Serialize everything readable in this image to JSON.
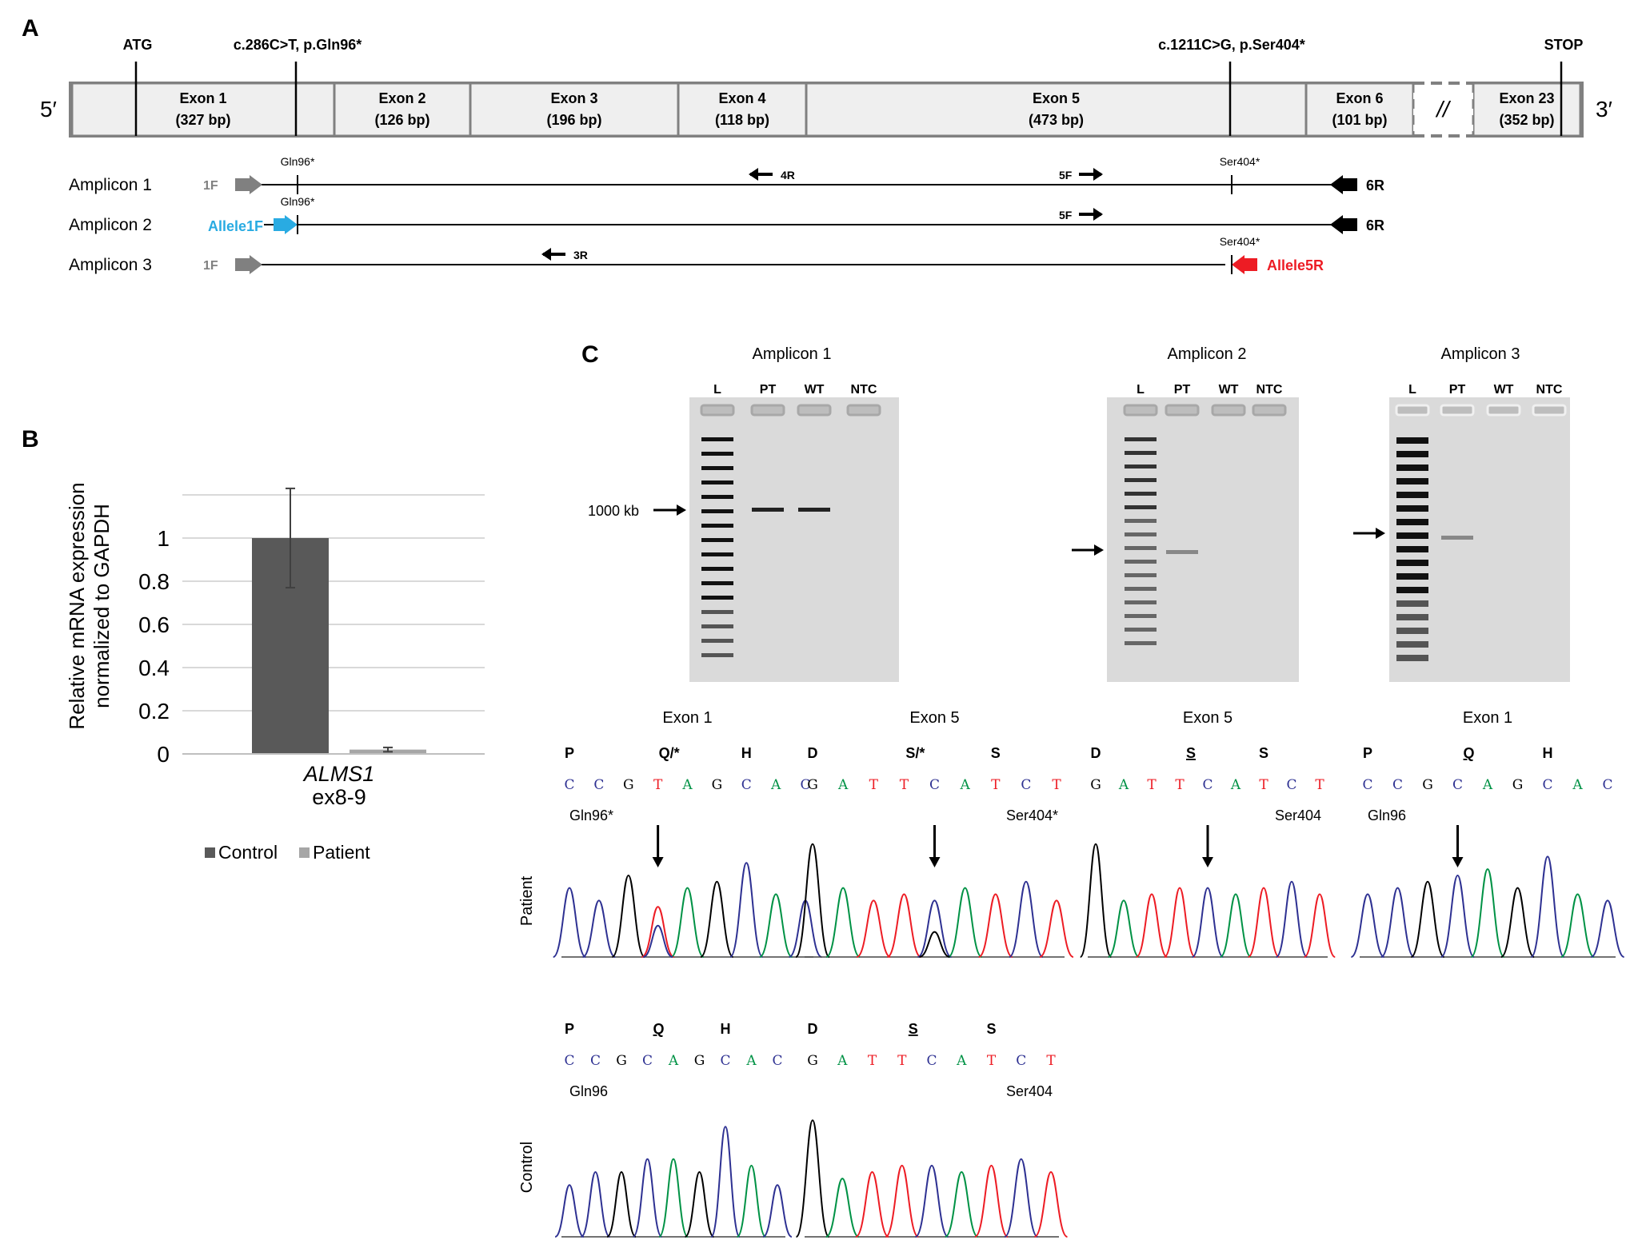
{
  "panels": {
    "a": "A",
    "b": "B",
    "c": "C"
  },
  "gene_map": {
    "five_prime": "5′",
    "three_prime": "3′",
    "markers": {
      "atg": "ATG",
      "mut1": "c.286C>T, p.Gln96*",
      "mut2": "c.1211C>G, p.Ser404*",
      "stop": "STOP"
    },
    "break_symbol": "//",
    "exons": [
      {
        "name": "Exon 1",
        "size": "(327 bp)"
      },
      {
        "name": "Exon 2",
        "size": "(126 bp)"
      },
      {
        "name": "Exon 3",
        "size": "(196 bp)"
      },
      {
        "name": "Exon 4",
        "size": "(118 bp)"
      },
      {
        "name": "Exon 5",
        "size": "(473 bp)"
      },
      {
        "name": "Exon 6",
        "size": "(101 bp)"
      },
      {
        "name": "Exon 23",
        "size": "(352 bp)"
      }
    ]
  },
  "amplicons": [
    {
      "label": "Amplicon 1",
      "fwd": "1F",
      "rev": "6R",
      "inner_rev": "4R",
      "inner_fwd": "5F",
      "site1": "Gln96*",
      "site2": "Ser404*"
    },
    {
      "label": "Amplicon 2",
      "fwd": "Allele1F",
      "rev": "6R",
      "inner_fwd": "5F",
      "site1": "Gln96*"
    },
    {
      "label": "Amplicon 3",
      "fwd": "1F",
      "rev": "Allele5R",
      "inner_rev": "3R",
      "site2": "Ser404*"
    }
  ],
  "colors": {
    "allele1f": "#29abe2",
    "allele5r": "#ed1c24",
    "bar_control": "#595959",
    "bar_patient": "#a6a6a6",
    "base_C": "#2e3192",
    "base_G": "#000000",
    "base_A": "#009245",
    "base_T": "#ed1c24"
  },
  "chart_data": {
    "type": "bar",
    "ylabel": "Relative mRNA expression normalized to GAPDH",
    "ylabel_line1": "Relative mRNA expression",
    "ylabel_line2": "normalized to GAPDH",
    "ylim": [
      0,
      1.2
    ],
    "yticks": [
      "0",
      "0.2",
      "0.4",
      "0.6",
      "0.8",
      "1"
    ],
    "category_gene": "ALMS1",
    "category_region": "ex8-9",
    "grid": true,
    "legend_position": "bottom",
    "series": [
      {
        "name": "Control",
        "values": [
          1.0
        ],
        "error": 0.23
      },
      {
        "name": "Patient",
        "values": [
          0.02
        ],
        "error": 0.01
      }
    ]
  },
  "gels": [
    {
      "title": "Amplicon 1",
      "lanes": [
        "L",
        "PT",
        "WT",
        "NTC"
      ],
      "marker_label": "1000 kb"
    },
    {
      "title": "Amplicon 2",
      "lanes": [
        "L",
        "PT",
        "WT",
        "NTC"
      ]
    },
    {
      "title": "Amplicon 3",
      "lanes": [
        "L",
        "PT",
        "WT",
        "NTC"
      ]
    }
  ],
  "row_labels": {
    "patient": "Patient",
    "control": "Control"
  },
  "chromatograms": {
    "patient": [
      {
        "title": "Exon 1",
        "aa": [
          "P",
          "Q/*",
          "H"
        ],
        "aa_underline": [
          false,
          false,
          false
        ],
        "bases": "CCGTAGCAC",
        "note": "Gln96*",
        "note_side": "left"
      },
      {
        "title": "Exon 5",
        "aa": [
          "D",
          "S/*",
          "S"
        ],
        "aa_underline": [
          false,
          false,
          false
        ],
        "bases": "GATTCATCT",
        "note": "Ser404*",
        "note_side": "right"
      },
      {
        "title": "Exon 5",
        "aa": [
          "D",
          "S",
          "S"
        ],
        "aa_underline": [
          false,
          true,
          false
        ],
        "bases": "GATTCATCT",
        "note": "Ser404",
        "note_side": "right"
      },
      {
        "title": "Exon 1",
        "aa": [
          "P",
          "Q",
          "H"
        ],
        "aa_underline": [
          false,
          true,
          false
        ],
        "bases": "CCGCAGCAC",
        "note": "Gln96",
        "note_side": "left"
      }
    ],
    "control": [
      {
        "aa": [
          "P",
          "Q",
          "H"
        ],
        "aa_underline": [
          false,
          true,
          false
        ],
        "bases": "CCGCAGCAC",
        "note": "Gln96",
        "note_side": "left"
      },
      {
        "aa": [
          "D",
          "S",
          "S"
        ],
        "aa_underline": [
          false,
          true,
          false
        ],
        "bases": "GATTCATCT",
        "note": "Ser404",
        "note_side": "right"
      }
    ]
  }
}
